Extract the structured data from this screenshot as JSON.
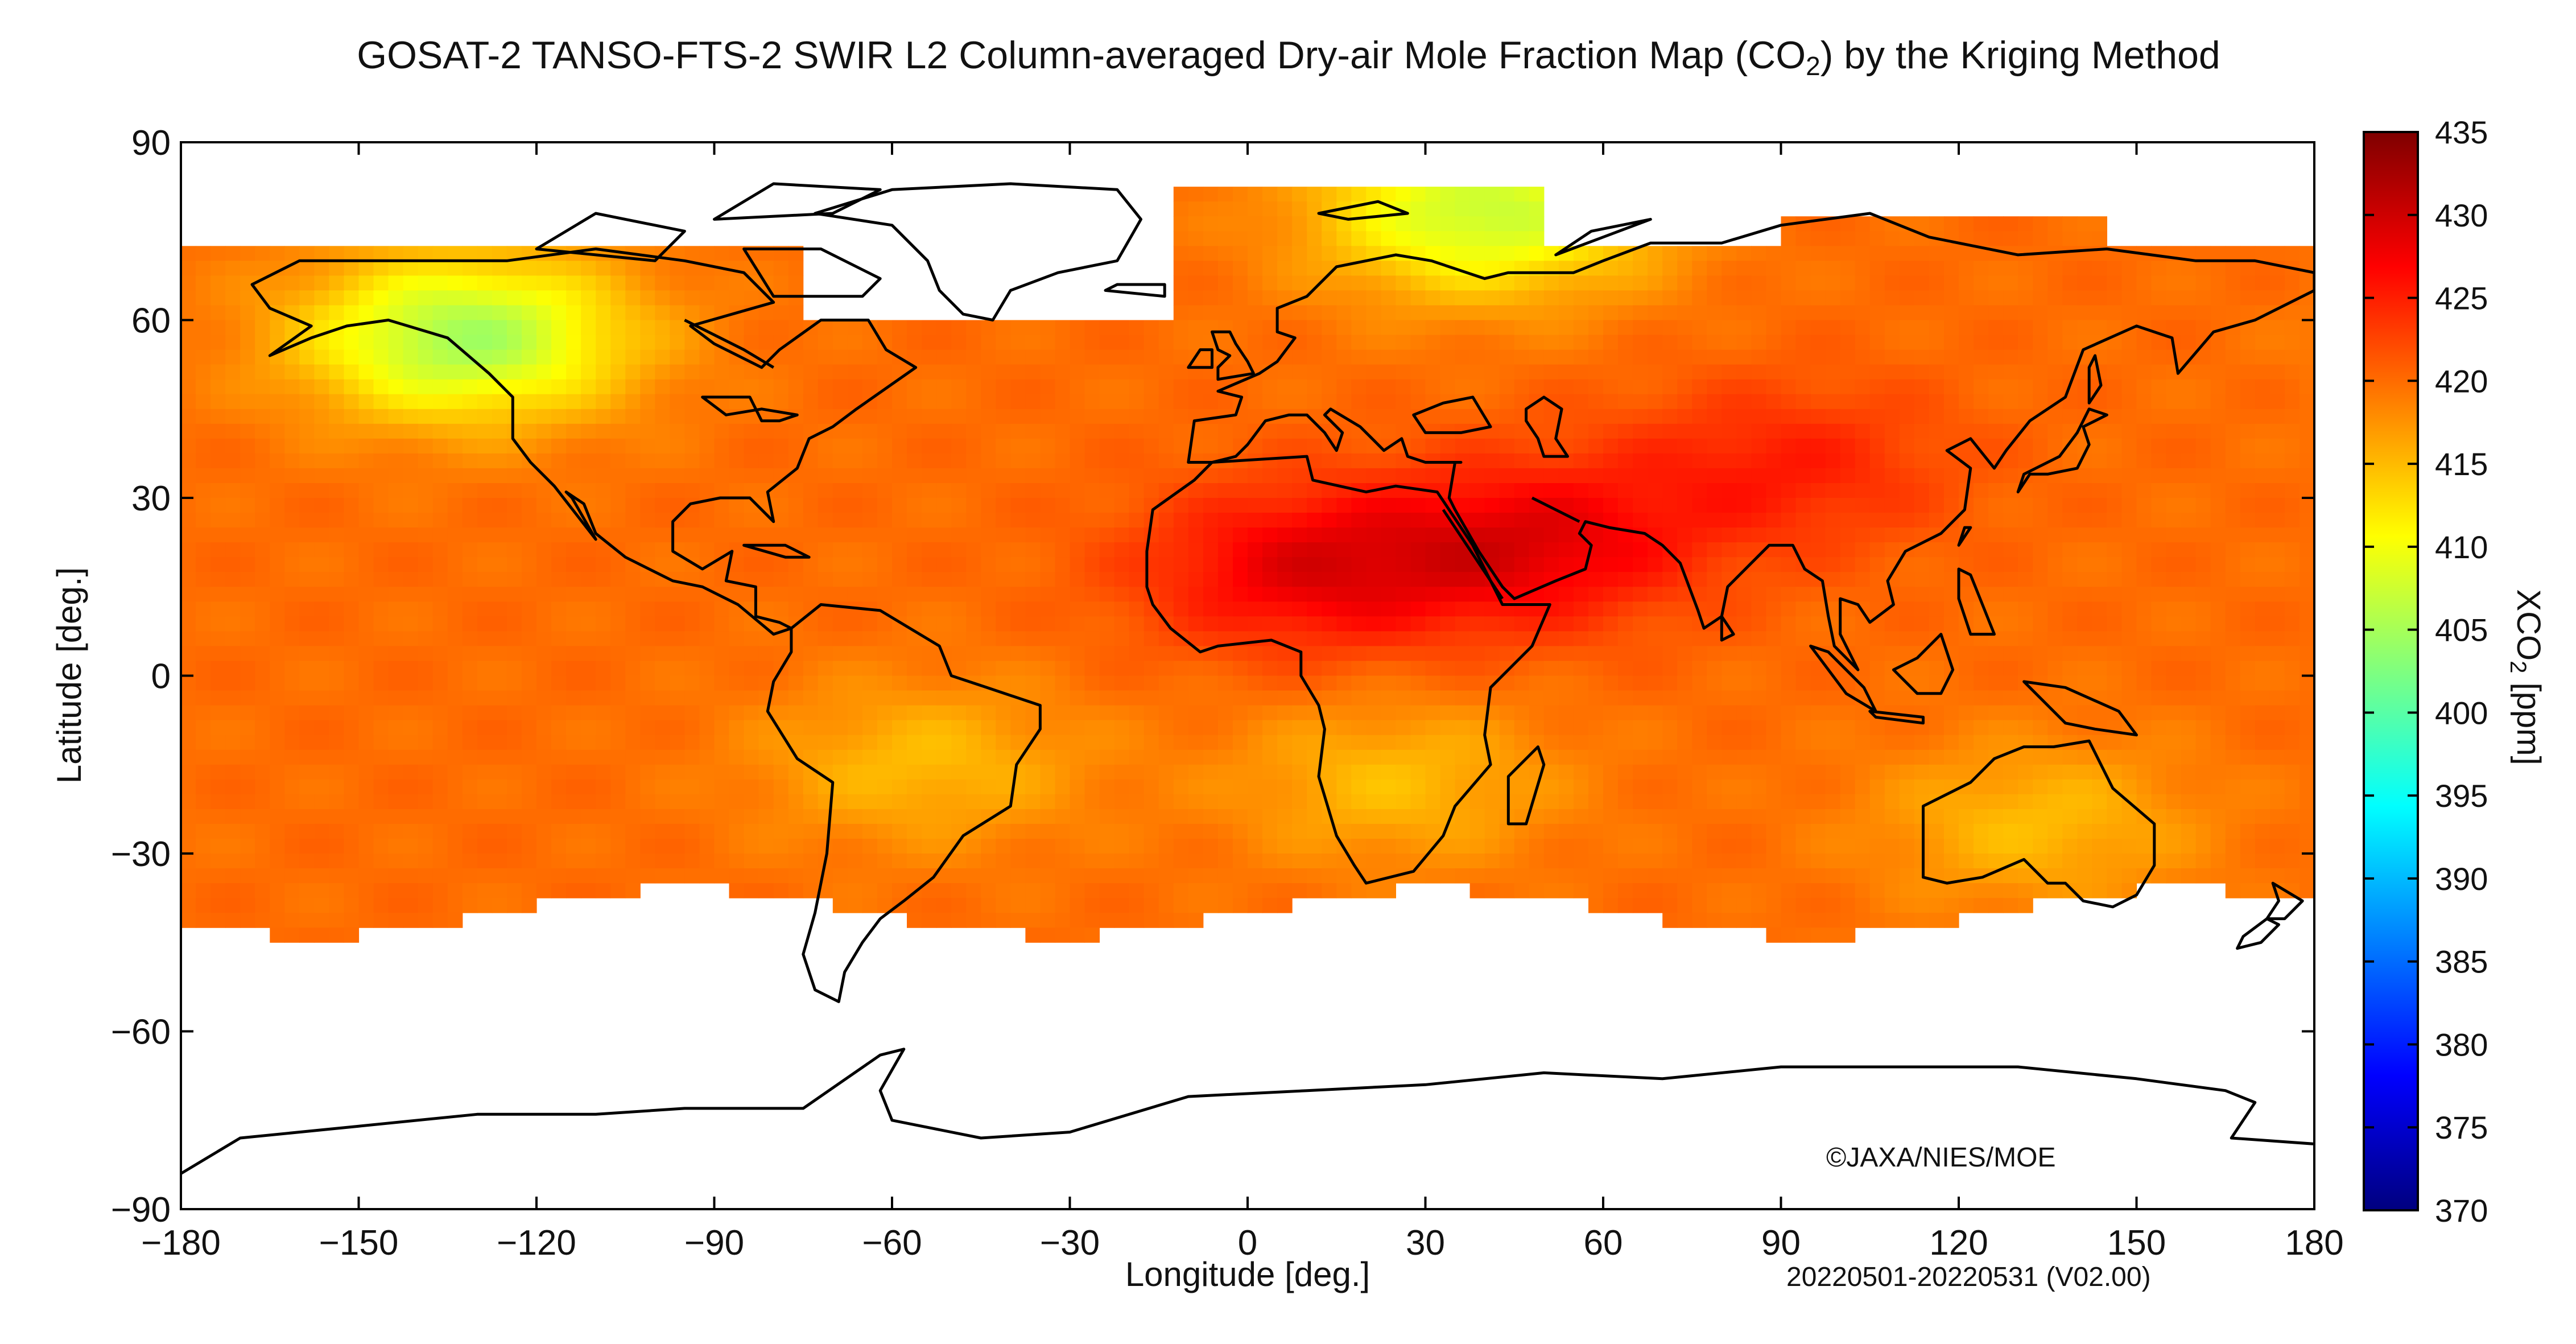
{
  "title": {
    "pre": "GOSAT-2 TANSO-FTS-2 SWIR L2 Column-averaged Dry-air Mole Fraction Map (CO",
    "sub": "2",
    "post": ") by the Kriging Method"
  },
  "chart_data": {
    "type": "heatmap",
    "xlabel": "Longitude [deg.]",
    "ylabel": "Latitude [deg.]",
    "xlim": [
      -180,
      180
    ],
    "ylim": [
      -90,
      90
    ],
    "xticks": [
      -180,
      -150,
      -120,
      -90,
      -60,
      -30,
      0,
      30,
      60,
      90,
      120,
      150,
      180
    ],
    "yticks": [
      -90,
      -60,
      -30,
      0,
      30,
      60,
      90
    ],
    "xtick_labels": [
      "−180",
      "−150",
      "−120",
      "−90",
      "−60",
      "−30",
      "0",
      "30",
      "60",
      "90",
      "120",
      "150",
      "180"
    ],
    "ytick_labels": [
      "−90",
      "−60",
      "−30",
      "0",
      "30",
      "60",
      "90"
    ],
    "grid": false,
    "colorbar": {
      "label_pre": "XCO",
      "label_sub": "2",
      "label_post": " [ppm]",
      "min": 370,
      "max": 435,
      "ticks": [
        370,
        375,
        380,
        385,
        390,
        395,
        400,
        405,
        410,
        415,
        420,
        425,
        430,
        435
      ],
      "colormap": "jet",
      "stops": [
        "#00007f",
        "#0000ff",
        "#007fff",
        "#00ffff",
        "#7fff7f",
        "#ffff00",
        "#ff7f00",
        "#ff0000",
        "#7f0000"
      ]
    },
    "coverage_lat": [
      -50,
      72
    ],
    "regions_ppm": [
      {
        "region": "background",
        "value": 420
      },
      {
        "region": "Sahara",
        "lon": 10,
        "lat": 18,
        "value": 428
      },
      {
        "region": "Arabian Peninsula",
        "lon": 48,
        "lat": 22,
        "value": 428
      },
      {
        "region": "East Asia",
        "lon": 90,
        "lat": 35,
        "value": 425
      },
      {
        "region": "Amazon / South America",
        "lon": -55,
        "lat": -15,
        "value": 415
      },
      {
        "region": "Southern Africa",
        "lon": 25,
        "lat": -18,
        "value": 415
      },
      {
        "region": "Australia",
        "lon": 133,
        "lat": -25,
        "value": 415
      },
      {
        "region": "Arctic (Svalbard/Barents)",
        "lon": 40,
        "lat": 78,
        "value": 407
      },
      {
        "region": "Alaska coast",
        "lon": -132,
        "lat": 57,
        "value": 405
      }
    ]
  },
  "credit": "©JAXA/NIES/MOE",
  "period": "20220501-20220531 (V02.00)"
}
